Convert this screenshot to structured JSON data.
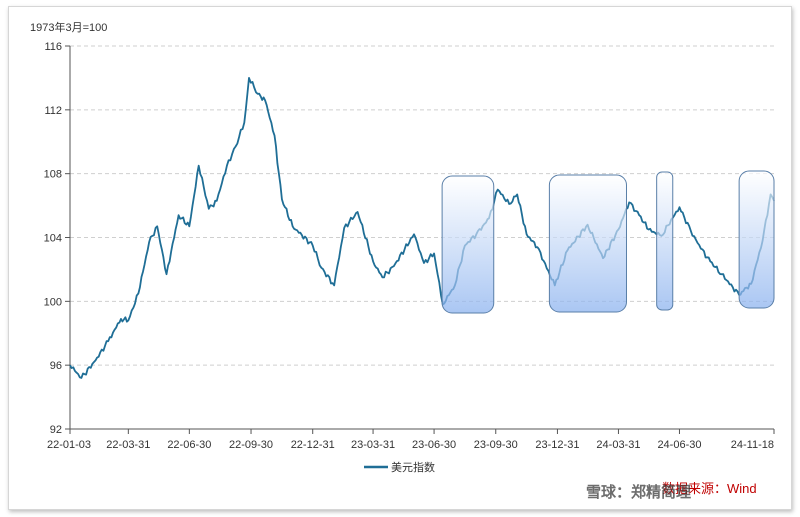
{
  "chart_data": {
    "type": "line",
    "unit_label": "1973年3月=100",
    "ylim": [
      92,
      116
    ],
    "yticks": [
      92,
      96,
      100,
      104,
      108,
      112,
      116
    ],
    "x_ticks": [
      "22-01-03",
      "22-03-31",
      "22-06-30",
      "22-09-30",
      "22-12-31",
      "23-03-31",
      "23-06-30",
      "23-09-30",
      "23-12-31",
      "24-03-31",
      "24-06-30",
      "24-11-18"
    ],
    "grid": "horizontal-dashed",
    "legend_position": "bottom",
    "series": [
      {
        "name": "美元指数",
        "color": "#1f6e96",
        "x": [
          "22-01-03",
          "22-01-20",
          "22-02-10",
          "22-03-01",
          "22-03-20",
          "22-03-31",
          "22-04-15",
          "22-05-01",
          "22-05-13",
          "22-05-27",
          "22-06-14",
          "22-06-30",
          "22-07-14",
          "22-07-29",
          "22-08-10",
          "22-08-25",
          "22-09-07",
          "22-09-20",
          "22-09-27",
          "22-10-10",
          "22-10-21",
          "22-11-04",
          "22-11-15",
          "22-12-01",
          "22-12-31",
          "23-01-13",
          "23-02-01",
          "23-02-16",
          "23-03-08",
          "23-03-31",
          "23-04-14",
          "23-05-01",
          "23-05-31",
          "23-06-15",
          "23-06-30",
          "23-07-13",
          "23-07-31",
          "23-08-15",
          "23-09-01",
          "23-09-20",
          "23-10-03",
          "23-10-20",
          "23-11-01",
          "23-11-15",
          "23-12-01",
          "23-12-27",
          "24-01-15",
          "24-02-14",
          "24-03-08",
          "24-03-31",
          "24-04-16",
          "24-05-01",
          "24-05-15",
          "24-06-03",
          "24-06-30",
          "24-07-17",
          "24-08-01",
          "24-08-15",
          "24-09-01",
          "24-09-27",
          "24-10-01",
          "24-10-15",
          "24-11-01",
          "24-11-13",
          "24-11-18"
        ],
        "values": [
          96.0,
          95.2,
          96.3,
          97.5,
          98.9,
          98.8,
          100.5,
          103.7,
          104.7,
          101.7,
          105.4,
          104.7,
          108.5,
          105.8,
          106.3,
          108.5,
          109.7,
          111.2,
          114.0,
          113.0,
          112.6,
          110.4,
          106.4,
          104.7,
          103.5,
          102.1,
          101.0,
          104.6,
          105.6,
          102.5,
          101.5,
          102.2,
          104.2,
          102.4,
          103.0,
          99.8,
          101.0,
          103.5,
          104.2,
          105.2,
          107.0,
          106.1,
          106.7,
          104.2,
          103.4,
          101.0,
          103.2,
          104.8,
          102.7,
          104.5,
          106.2,
          105.4,
          104.5,
          104.1,
          105.9,
          104.4,
          103.3,
          102.5,
          101.7,
          100.4,
          100.6,
          101.1,
          103.8,
          106.7,
          106.3
        ]
      }
    ],
    "highlight_ranges": [
      [
        "23-07-12",
        "23-09-27"
      ],
      [
        "23-12-19",
        "24-04-12"
      ],
      [
        "24-05-27",
        "24-06-20"
      ],
      [
        "24-09-27",
        "24-11-18"
      ]
    ]
  },
  "legend": {
    "label": "美元指数"
  },
  "source": "数据来源：Wind",
  "watermark": "雪球：郑精简理"
}
